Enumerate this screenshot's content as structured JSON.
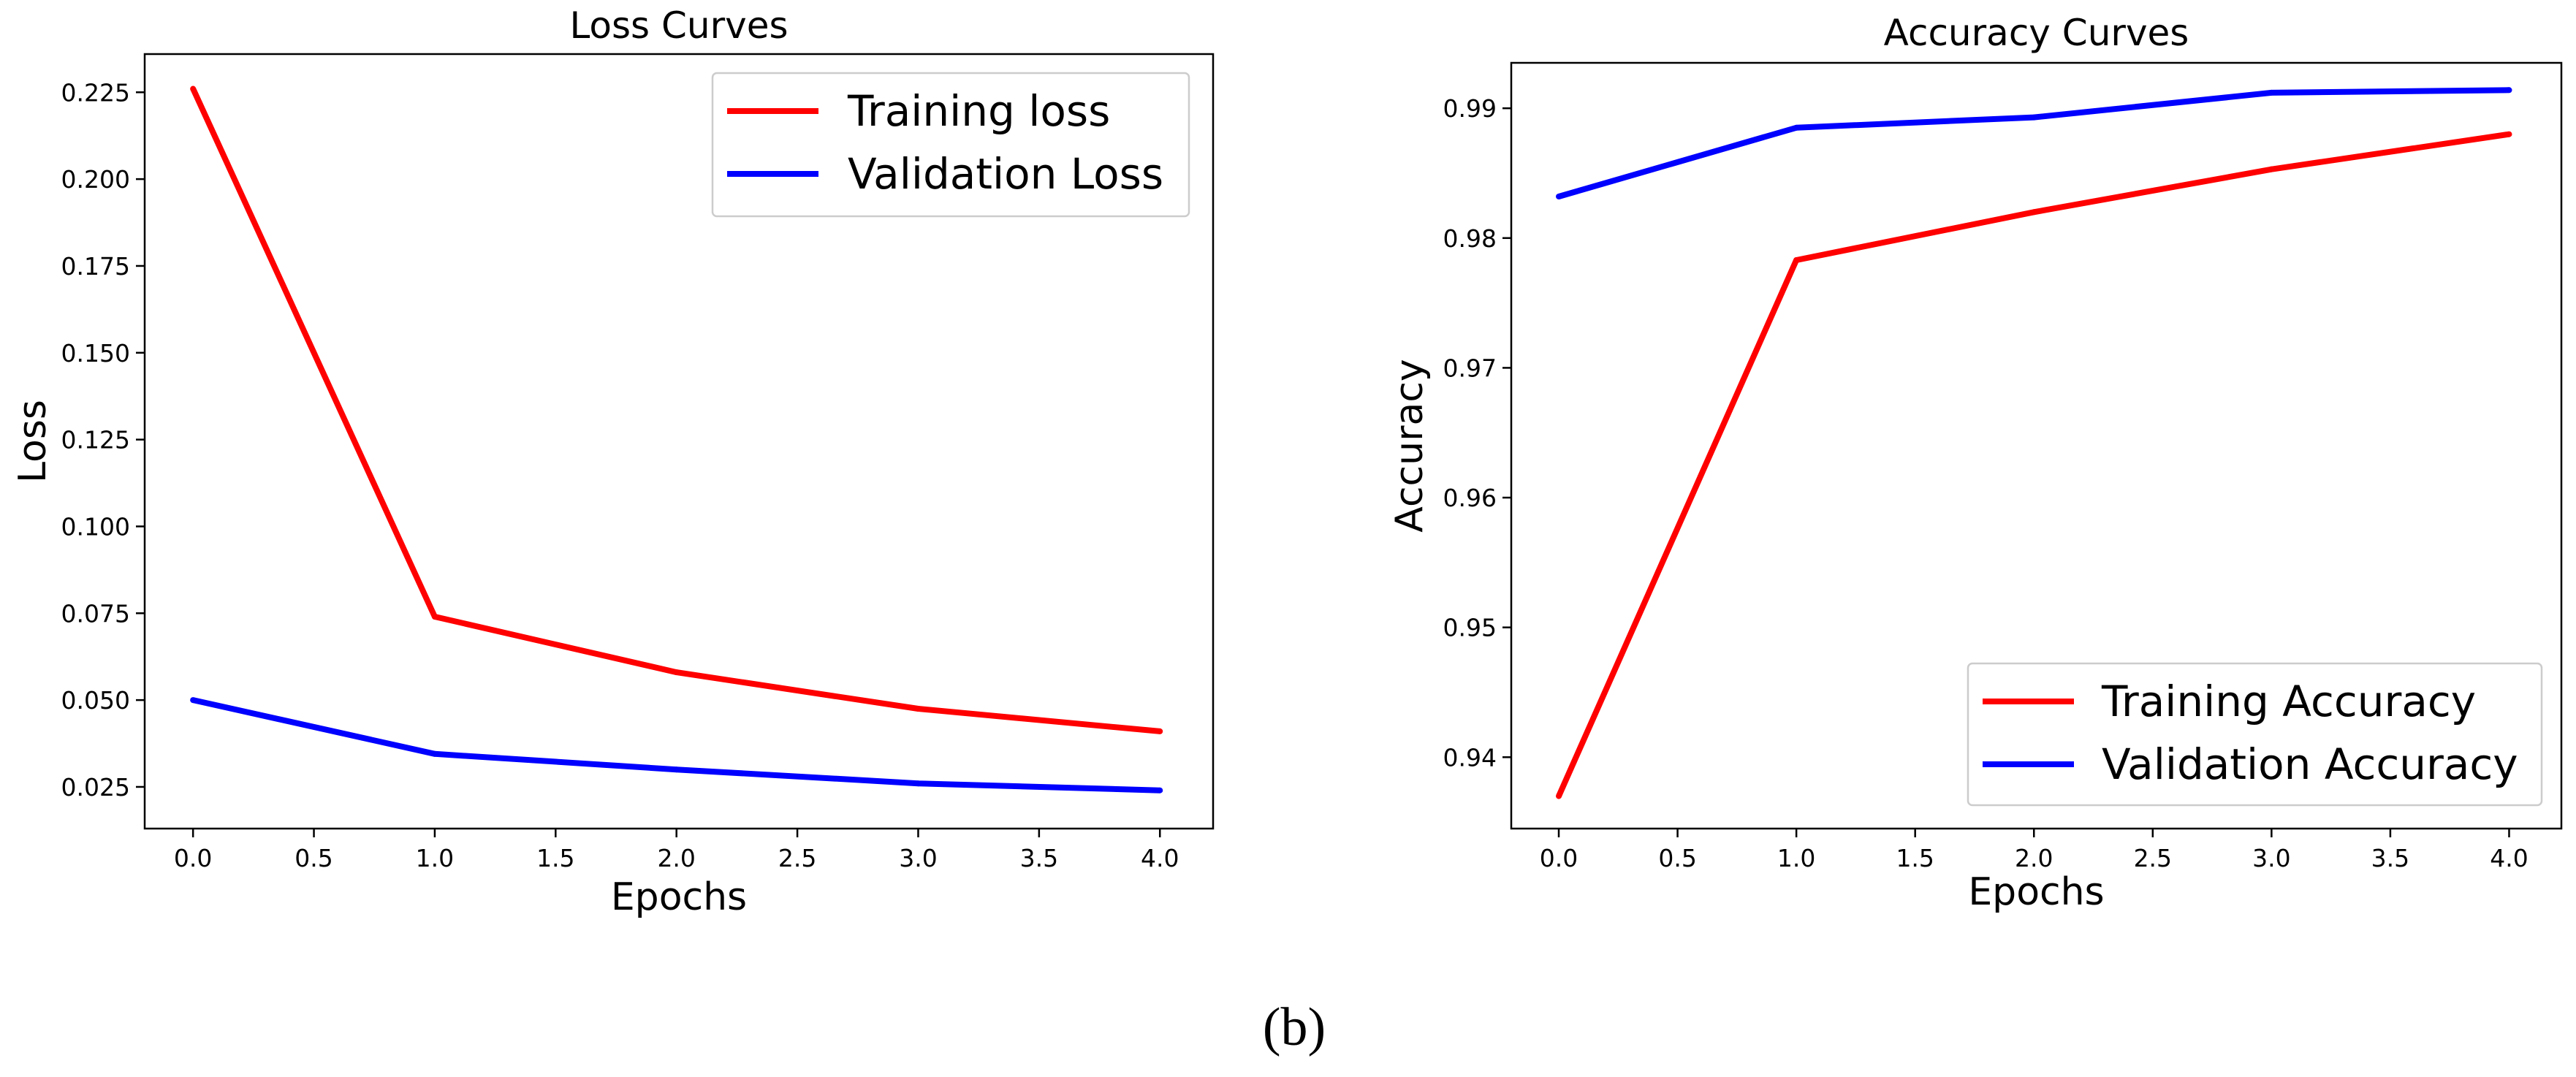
{
  "figure": {
    "panel_label": "(b)"
  },
  "chart_data": [
    {
      "type": "line",
      "title": "Loss Curves",
      "xlabel": "Epochs",
      "ylabel": "Loss",
      "x": [
        0,
        1,
        2,
        3,
        4
      ],
      "xlim": [
        -0.2,
        4.22
      ],
      "ylim": [
        0.013,
        0.236
      ],
      "xticks": [
        0.0,
        0.5,
        1.0,
        1.5,
        2.0,
        2.5,
        3.0,
        3.5,
        4.0
      ],
      "xtick_labels": [
        "0.0",
        "0.5",
        "1.0",
        "1.5",
        "2.0",
        "2.5",
        "3.0",
        "3.5",
        "4.0"
      ],
      "yticks": [
        0.025,
        0.05,
        0.075,
        0.1,
        0.125,
        0.15,
        0.175,
        0.2,
        0.225
      ],
      "ytick_labels": [
        "0.025",
        "0.050",
        "0.075",
        "0.100",
        "0.125",
        "0.150",
        "0.175",
        "0.200",
        "0.225"
      ],
      "grid": false,
      "legend_position": "top-right",
      "series": [
        {
          "name": "Training loss",
          "color": "#ff0000",
          "values": [
            0.226,
            0.074,
            0.058,
            0.0475,
            0.041
          ]
        },
        {
          "name": "Validation Loss",
          "color": "#0000ff",
          "values": [
            0.05,
            0.0345,
            0.03,
            0.026,
            0.024
          ]
        }
      ]
    },
    {
      "type": "line",
      "title": "Accuracy Curves",
      "xlabel": "Epochs",
      "ylabel": "Accuracy",
      "x": [
        0,
        1,
        2,
        3,
        4
      ],
      "xlim": [
        -0.2,
        4.22
      ],
      "ylim": [
        0.9345,
        0.9935
      ],
      "xticks": [
        0.0,
        0.5,
        1.0,
        1.5,
        2.0,
        2.5,
        3.0,
        3.5,
        4.0
      ],
      "xtick_labels": [
        "0.0",
        "0.5",
        "1.0",
        "1.5",
        "2.0",
        "2.5",
        "3.0",
        "3.5",
        "4.0"
      ],
      "yticks": [
        0.94,
        0.95,
        0.96,
        0.97,
        0.98,
        0.99
      ],
      "ytick_labels": [
        "0.94",
        "0.95",
        "0.96",
        "0.97",
        "0.98",
        "0.99"
      ],
      "grid": false,
      "legend_position": "bottom-right",
      "series": [
        {
          "name": "Training Accuracy",
          "color": "#ff0000",
          "values": [
            0.937,
            0.9783,
            0.982,
            0.9853,
            0.988
          ]
        },
        {
          "name": "Validation Accuracy",
          "color": "#0000ff",
          "values": [
            0.9832,
            0.9885,
            0.9893,
            0.9912,
            0.9914
          ]
        }
      ]
    }
  ]
}
